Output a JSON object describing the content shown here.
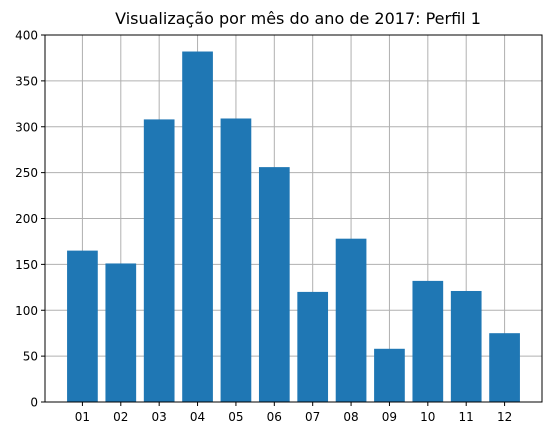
{
  "chart_data": {
    "type": "bar",
    "title": "Visualização por mês do ano de 2017: Perfil 1",
    "xlabel": "",
    "ylabel": "",
    "categories": [
      "01",
      "02",
      "03",
      "04",
      "05",
      "06",
      "07",
      "08",
      "09",
      "10",
      "11",
      "12"
    ],
    "values": [
      165,
      151,
      308,
      382,
      309,
      256,
      120,
      178,
      58,
      132,
      121,
      75
    ],
    "ylim": [
      0,
      400
    ],
    "yticks": [
      "0",
      "50",
      "100",
      "150",
      "200",
      "250",
      "300",
      "350",
      "400"
    ],
    "grid": true,
    "legend": "none",
    "bar_color": "#1f77b4",
    "grid_color": "#b0b0b0"
  }
}
